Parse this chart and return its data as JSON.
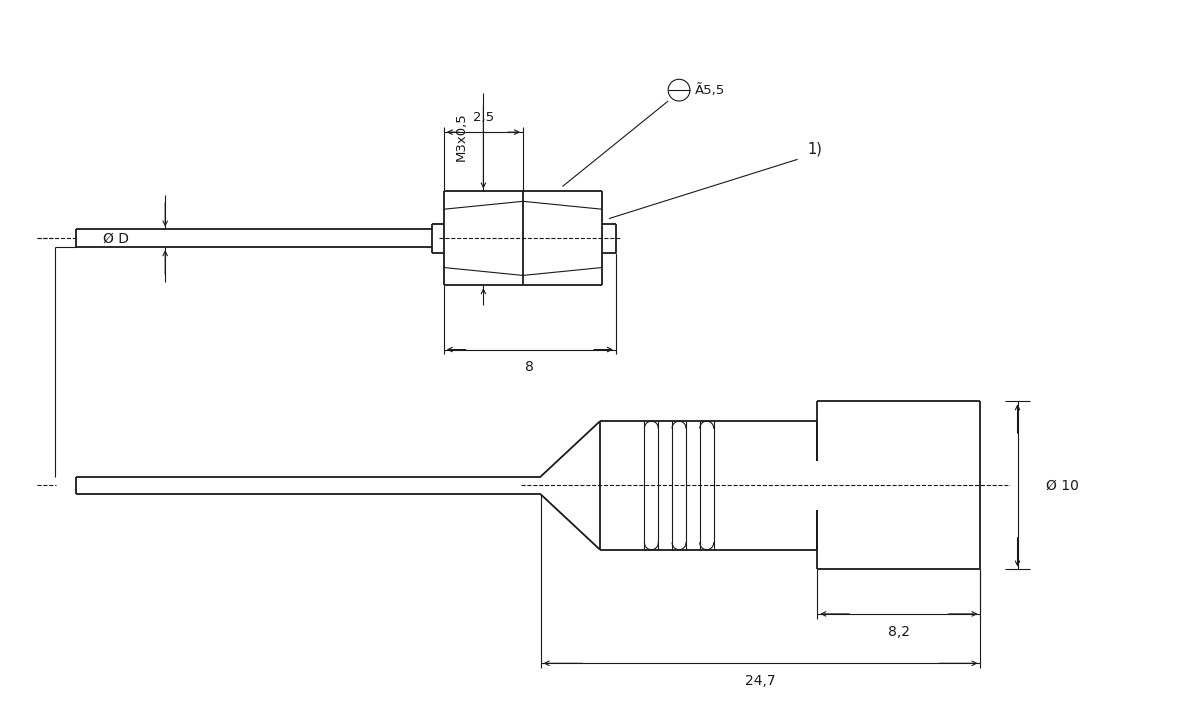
{
  "bg_color": "#ffffff",
  "line_color": "#1a1a1a",
  "lw": 1.3,
  "tlw": 0.8,
  "fig_width": 12.0,
  "fig_height": 7.07,
  "annotations": {
    "phi_D": "Ø D",
    "M3x05": "M3x0,5",
    "dim_25": "2,5",
    "dim_55": "Ã5,5",
    "dim_8": "8",
    "ref_1": "1)",
    "phi_10": "Ø 10",
    "dim_82": "8,2",
    "dim_247": "24,7"
  }
}
